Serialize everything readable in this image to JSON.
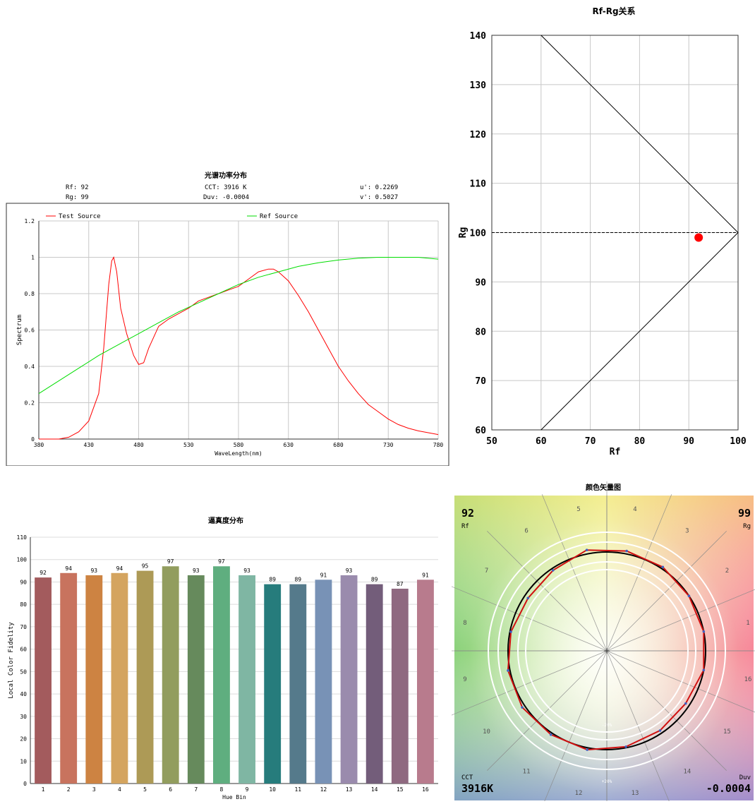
{
  "spd": {
    "title": "光谱功率分布",
    "rf_label": "Rf: 92",
    "rg_label": "Rg: 99",
    "cct_label": "CCT: 3916 K",
    "duv_label": "Duv: -0.0004",
    "u_label": "u': 0.2269",
    "v_label": "v': 0.5027"
  },
  "rfrg": {
    "title": "Rf-Rg关系"
  },
  "bars": {
    "title": "逼真度分布"
  },
  "vector": {
    "title": "颜色矢量图",
    "rf_value": "92",
    "rf_label": "Rf",
    "rg_value": "99",
    "rg_label": "Rg",
    "cct_label": "CCT",
    "cct_value": "3916K",
    "duv_label": "Duv",
    "duv_value": "-0.0004",
    "ring_labels": [
      "-20%",
      "+20%"
    ]
  },
  "chart_data": [
    {
      "id": "spd",
      "type": "line",
      "title": "光谱功率分布",
      "xlabel": "WaveLength(nm)",
      "ylabel": "Spectrum",
      "xlim": [
        380,
        780
      ],
      "ylim": [
        0,
        1.2
      ],
      "xticks": [
        "380",
        "430",
        "480",
        "530",
        "580",
        "630",
        "680",
        "730",
        "780"
      ],
      "yticks": [
        "0",
        "0.2",
        "0.4",
        "0.6",
        "0.8",
        "1",
        "1.2"
      ],
      "grid": true,
      "legend": "top",
      "colors": {
        "test": "#ff0000",
        "ref": "#00dd00"
      },
      "series": [
        {
          "name": "Test Source",
          "x": [
            380,
            400,
            410,
            420,
            430,
            440,
            445,
            450,
            453,
            455,
            458,
            462,
            468,
            475,
            480,
            485,
            490,
            500,
            510,
            520,
            530,
            540,
            550,
            560,
            570,
            580,
            590,
            600,
            610,
            615,
            620,
            630,
            640,
            650,
            660,
            670,
            680,
            690,
            700,
            710,
            720,
            730,
            740,
            750,
            760,
            770,
            780
          ],
          "values": [
            0,
            0,
            0.01,
            0.04,
            0.1,
            0.25,
            0.5,
            0.85,
            0.98,
            1.0,
            0.92,
            0.72,
            0.58,
            0.46,
            0.41,
            0.42,
            0.5,
            0.62,
            0.66,
            0.69,
            0.72,
            0.76,
            0.78,
            0.8,
            0.82,
            0.84,
            0.88,
            0.92,
            0.935,
            0.935,
            0.92,
            0.87,
            0.79,
            0.7,
            0.6,
            0.5,
            0.4,
            0.32,
            0.25,
            0.19,
            0.15,
            0.11,
            0.08,
            0.06,
            0.045,
            0.035,
            0.025
          ]
        },
        {
          "name": "Ref Source",
          "x": [
            380,
            400,
            420,
            440,
            460,
            480,
            500,
            520,
            540,
            560,
            580,
            600,
            620,
            640,
            660,
            680,
            700,
            720,
            740,
            760,
            780
          ],
          "values": [
            0.25,
            0.32,
            0.39,
            0.46,
            0.52,
            0.58,
            0.64,
            0.7,
            0.75,
            0.8,
            0.85,
            0.89,
            0.92,
            0.95,
            0.97,
            0.985,
            0.995,
            1.0,
            1.0,
            1.0,
            0.99
          ]
        }
      ]
    },
    {
      "id": "rfrg",
      "type": "scatter",
      "title": "Rf-Rg关系",
      "xlabel": "Rf",
      "ylabel": "Rg",
      "xlim": [
        50,
        100
      ],
      "ylim": [
        60,
        140
      ],
      "xticks": [
        "50",
        "60",
        "70",
        "80",
        "90",
        "100"
      ],
      "yticks": [
        "60",
        "70",
        "80",
        "90",
        "100",
        "110",
        "120",
        "130",
        "140"
      ],
      "grid": true,
      "boundary": [
        [
          60,
          140
        ],
        [
          100,
          100
        ],
        [
          60,
          60
        ]
      ],
      "reference_line_y": 100,
      "points": [
        {
          "x": 92,
          "y": 99,
          "color": "#ff0000"
        }
      ]
    },
    {
      "id": "bars",
      "type": "bar",
      "title": "逼真度分布",
      "xlabel": "Hue Bin",
      "ylabel": "Local Color Fidelity",
      "ylim": [
        0,
        110
      ],
      "yticks": [
        "0",
        "10",
        "20",
        "30",
        "40",
        "50",
        "60",
        "70",
        "80",
        "90",
        "100",
        "110"
      ],
      "categories": [
        "1",
        "2",
        "3",
        "4",
        "5",
        "6",
        "7",
        "8",
        "9",
        "10",
        "11",
        "12",
        "13",
        "14",
        "15",
        "16"
      ],
      "values": [
        92,
        94,
        93,
        94,
        95,
        97,
        93,
        97,
        93,
        89,
        89,
        91,
        93,
        89,
        87,
        91
      ],
      "colors": [
        "#a35b5d",
        "#c8735e",
        "#cd8342",
        "#d4a45f",
        "#ad9a56",
        "#929d5e",
        "#668a5c",
        "#5fae7f",
        "#7fb6a3",
        "#267c7c",
        "#557a8b",
        "#7892b6",
        "#9a8bad",
        "#735d7a",
        "#8f6980",
        "#b87b8d"
      ]
    },
    {
      "id": "vector",
      "type": "line",
      "title": "颜色矢量图",
      "hue_bins": [
        "1",
        "2",
        "3",
        "4",
        "5",
        "6",
        "7",
        "8",
        "9",
        "10",
        "11",
        "12",
        "13",
        "14",
        "15",
        "16"
      ],
      "test_radius_relative": [
        1.0,
        1.0,
        1.02,
        1.03,
        1.04,
        0.98,
        0.96,
        0.99,
        1.02,
        1.03,
        1.02,
        1.02,
        0.99,
        0.97,
        0.96,
        1.0
      ]
    }
  ]
}
